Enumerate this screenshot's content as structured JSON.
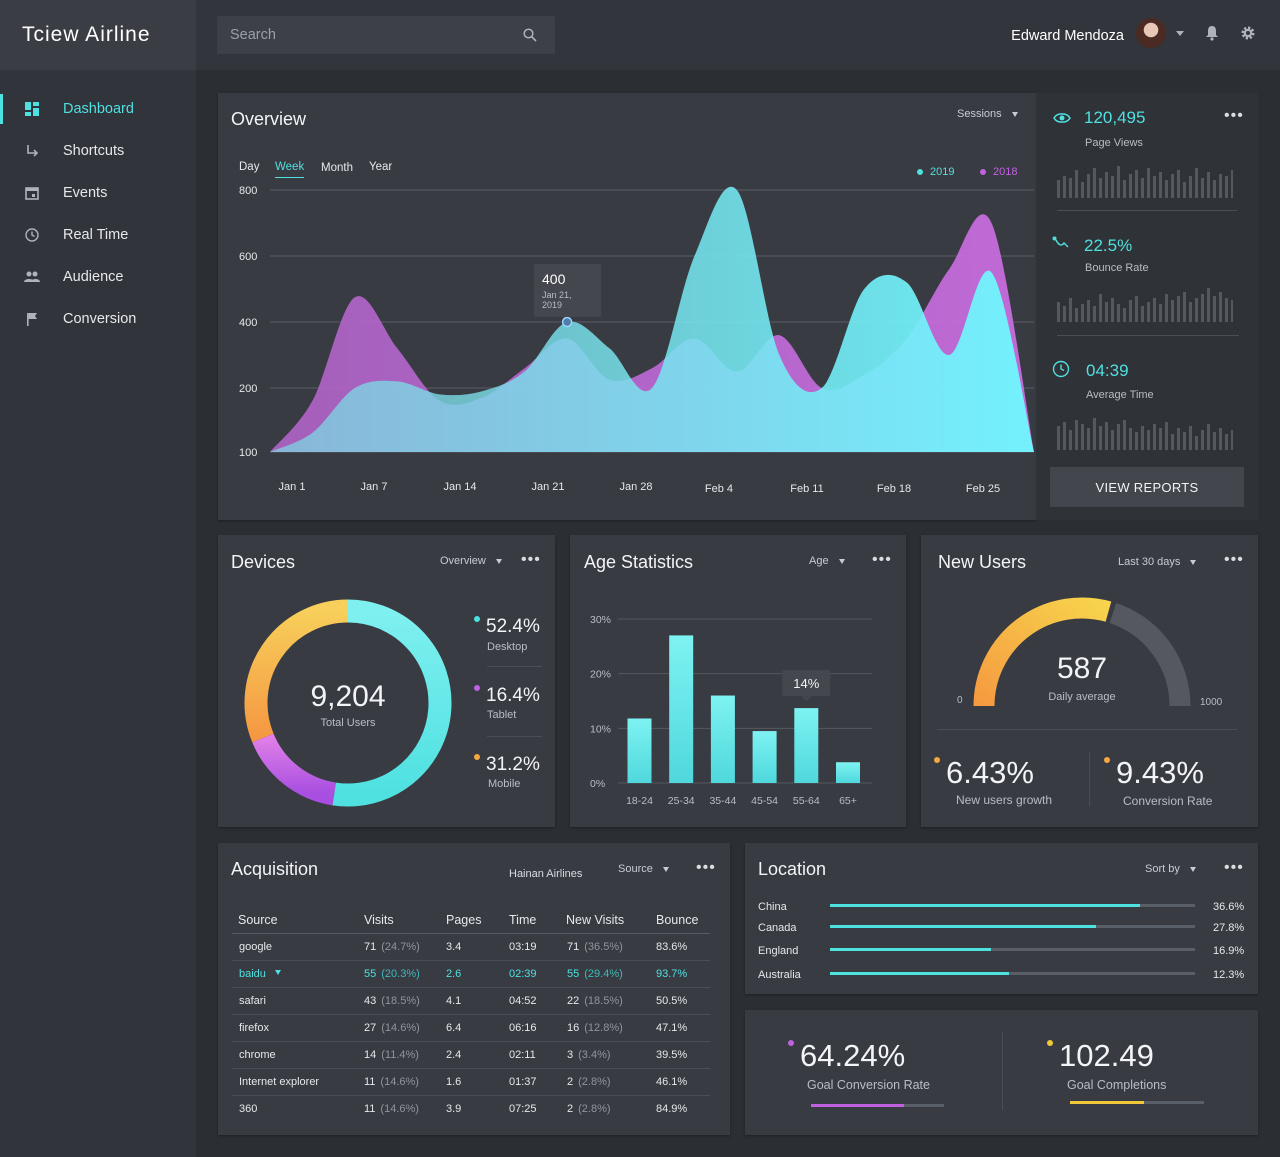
{
  "app": {
    "title": "Tciew Airline"
  },
  "sidebar": {
    "items": [
      {
        "label": "Dashboard",
        "icon": "dashboard-icon",
        "active": true
      },
      {
        "label": "Shortcuts",
        "icon": "shortcut-arrow-icon"
      },
      {
        "label": "Events",
        "icon": "calendar-icon"
      },
      {
        "label": "Real Time",
        "icon": "clock-icon"
      },
      {
        "label": "Audience",
        "icon": "people-icon"
      },
      {
        "label": "Conversion",
        "icon": "flag-icon"
      }
    ]
  },
  "header": {
    "search_placeholder": "Search",
    "user_name": "Edward Mendoza"
  },
  "overview": {
    "title": "Overview",
    "dropdown": "Sessions",
    "periods": [
      "Day",
      "Week",
      "Month",
      "Year"
    ],
    "active_period": "Week",
    "tooltip": {
      "value": "400",
      "date": "Jan 21, 2019"
    },
    "legend": [
      {
        "name": "2019",
        "color": "#4fe0e0"
      },
      {
        "name": "2018",
        "color": "#c062e0"
      }
    ]
  },
  "chart_data": [
    {
      "type": "area",
      "x_ticks": [
        "Jan 1",
        "Jan 7",
        "Jan 14",
        "Jan 21",
        "Jan 28",
        "Feb 4",
        "Feb 11",
        "Feb 18",
        "Feb 25"
      ],
      "y_ticks": [
        100,
        200,
        400,
        600,
        800
      ],
      "series": [
        {
          "name": "2018",
          "color": "#c062e0",
          "values": [
            100,
            180,
            475,
            320,
            180,
            185,
            260,
            350,
            225,
            260,
            350,
            250,
            360,
            200,
            240,
            350,
            560,
            700,
            100
          ]
        },
        {
          "name": "2019",
          "color": "#4fe0e0",
          "values": [
            100,
            130,
            200,
            220,
            190,
            195,
            250,
            400,
            320,
            200,
            600,
            800,
            300,
            200,
            500,
            520,
            300,
            550,
            100
          ]
        }
      ]
    },
    {
      "type": "pie",
      "title": "Devices",
      "center_value": "9,204",
      "center_label": "Total Users",
      "slices": [
        {
          "name": "Desktop",
          "value": 52.4,
          "label": "52.4%",
          "color": "#4fe0e0"
        },
        {
          "name": "Tablet",
          "value": 16.4,
          "label": "16.4%",
          "color": "#c062e0"
        },
        {
          "name": "Mobile",
          "value": 31.2,
          "label": "31.2%",
          "color": "#f5a742"
        }
      ]
    },
    {
      "type": "bar",
      "title": "Age Statistics",
      "categories": [
        "18-24",
        "25-34",
        "35-44",
        "45-54",
        "55-64",
        "65+"
      ],
      "values": [
        11.8,
        27,
        16,
        9.5,
        13.7,
        3.8
      ],
      "y_ticks": [
        "0%",
        "10%",
        "20%",
        "30%"
      ],
      "ylim": [
        0,
        30
      ],
      "highlight": {
        "index": 4,
        "label": "14%"
      }
    }
  ],
  "side_stats": [
    {
      "value": "120,495",
      "label": "Page Views",
      "icon": "eye-icon"
    },
    {
      "value": "22.5%",
      "label": "Bounce Rate",
      "icon": "trend-icon"
    },
    {
      "value": "04:39",
      "label": "Average Time",
      "icon": "clock-icon"
    }
  ],
  "view_reports": "VIEW REPORTS",
  "devices": {
    "title": "Devices",
    "dropdown": "Overview"
  },
  "age": {
    "title": "Age Statistics",
    "dropdown": "Age"
  },
  "new_users": {
    "title": "New Users",
    "dropdown": "Last 30 days",
    "gauge_value": "587",
    "gauge_label": "Daily average",
    "gauge_fraction": 0.587,
    "gauge_min": "0",
    "gauge_max": "1000",
    "growth_value": "6.43%",
    "growth_label": "New users growth",
    "conversion_value": "9.43%",
    "conversion_label": "Conversion Rate"
  },
  "acquisition": {
    "title": "Acquisition",
    "account": "Hainan Airlines",
    "dropdown": "Source",
    "columns": [
      "Source",
      "Visits",
      "Pages",
      "Time",
      "New Visits",
      "Bounce"
    ],
    "rows": [
      {
        "source": "google",
        "visits": "71",
        "visits_pct": "(24.7%)",
        "pages": "3.4",
        "time": "03:19",
        "new": "71",
        "new_pct": "(36.5%)",
        "bounce": "83.6%"
      },
      {
        "source": "baidu",
        "visits": "55",
        "visits_pct": "(20.3%)",
        "pages": "2.6",
        "time": "02:39",
        "new": "55",
        "new_pct": "(29.4%)",
        "bounce": "93.7%",
        "highlight": true
      },
      {
        "source": "safari",
        "visits": "43",
        "visits_pct": "(18.5%)",
        "pages": "4.1",
        "time": "04:52",
        "new": "22",
        "new_pct": "(18.5%)",
        "bounce": "50.5%"
      },
      {
        "source": "firefox",
        "visits": "27",
        "visits_pct": "(14.6%)",
        "pages": "6.4",
        "time": "06:16",
        "new": "16",
        "new_pct": "(12.8%)",
        "bounce": "47.1%"
      },
      {
        "source": "chrome",
        "visits": "14",
        "visits_pct": "(11.4%)",
        "pages": "2.4",
        "time": "02:11",
        "new": "3",
        "new_pct": "(3.4%)",
        "bounce": "39.5%"
      },
      {
        "source": "Internet explorer",
        "visits": "11",
        "visits_pct": "(14.6%)",
        "pages": "1.6",
        "time": "01:37",
        "new": "2",
        "new_pct": "(2.8%)",
        "bounce": "46.1%"
      },
      {
        "source": "360",
        "visits": "11",
        "visits_pct": "(14.6%)",
        "pages": "3.9",
        "time": "07:25",
        "new": "2",
        "new_pct": "(2.8%)",
        "bounce": "84.9%"
      }
    ]
  },
  "location": {
    "title": "Location",
    "dropdown": "Sort by",
    "rows": [
      {
        "name": "China",
        "pct": "36.6%",
        "fill": 0.85
      },
      {
        "name": "Canada",
        "pct": "27.8%",
        "fill": 0.73
      },
      {
        "name": "England",
        "pct": "16.9%",
        "fill": 0.44
      },
      {
        "name": "Australia",
        "pct": "12.3%",
        "fill": 0.49
      }
    ]
  },
  "goals": [
    {
      "value": "64.24%",
      "label": "Goal Conversion Rate",
      "color": "#c062e0",
      "fill": 0.7
    },
    {
      "value": "102.49",
      "label": "Goal Completions",
      "color": "#f0c93a",
      "fill": 0.55
    }
  ]
}
